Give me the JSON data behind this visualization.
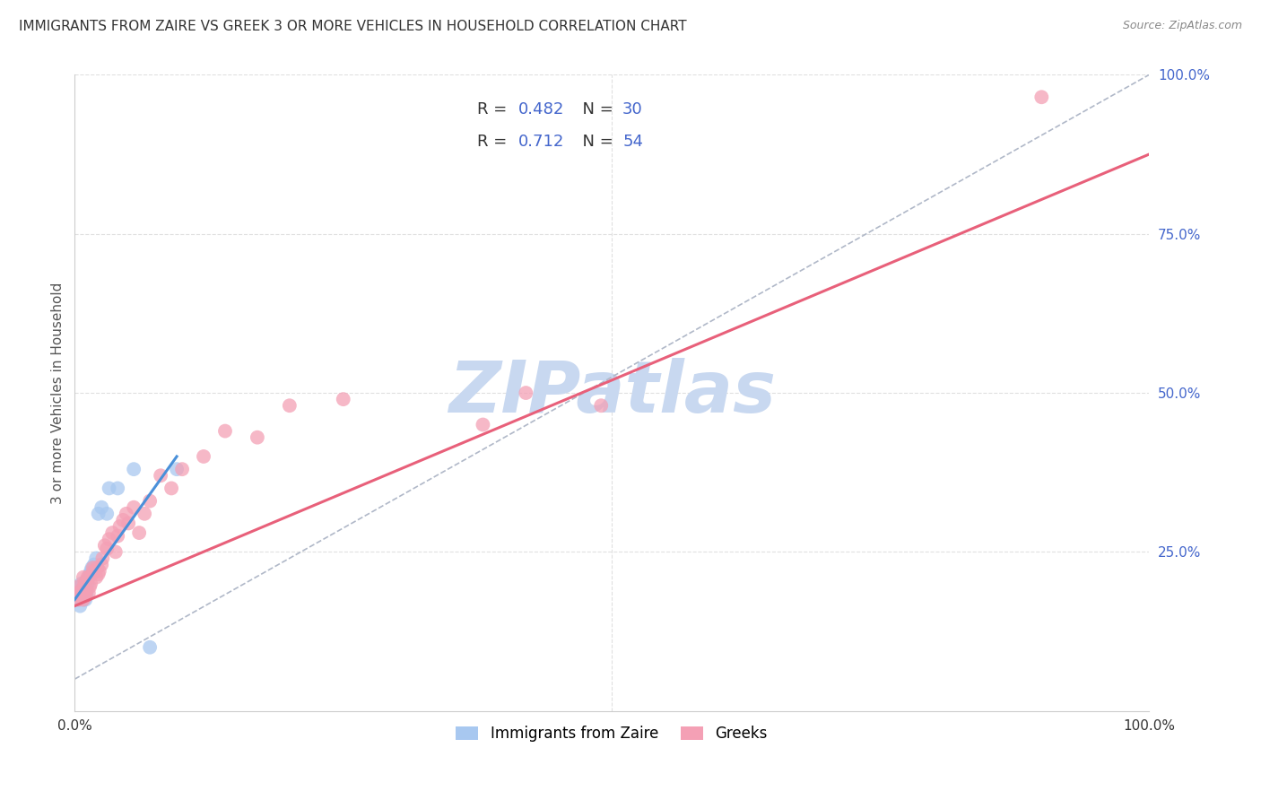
{
  "title": "IMMIGRANTS FROM ZAIRE VS GREEK 3 OR MORE VEHICLES IN HOUSEHOLD CORRELATION CHART",
  "source_text": "Source: ZipAtlas.com",
  "ylabel": "3 or more Vehicles in Household",
  "watermark": "ZIPatlas",
  "xlim": [
    0,
    1.0
  ],
  "ylim": [
    0,
    1.0
  ],
  "legend_r_n": [
    {
      "R": "0.482",
      "N": "30",
      "color": "#a8c8f0"
    },
    {
      "R": "0.712",
      "N": "54",
      "color": "#f4a0b5"
    }
  ],
  "blue_scatter_x": [
    0.003,
    0.004,
    0.005,
    0.005,
    0.006,
    0.007,
    0.007,
    0.008,
    0.008,
    0.009,
    0.009,
    0.01,
    0.01,
    0.011,
    0.011,
    0.012,
    0.013,
    0.014,
    0.015,
    0.016,
    0.018,
    0.02,
    0.022,
    0.025,
    0.03,
    0.032,
    0.04,
    0.055,
    0.07,
    0.095
  ],
  "blue_scatter_y": [
    0.185,
    0.175,
    0.165,
    0.195,
    0.2,
    0.18,
    0.19,
    0.185,
    0.175,
    0.178,
    0.185,
    0.19,
    0.175,
    0.182,
    0.195,
    0.2,
    0.21,
    0.215,
    0.22,
    0.225,
    0.23,
    0.24,
    0.31,
    0.32,
    0.31,
    0.35,
    0.35,
    0.38,
    0.1,
    0.38
  ],
  "pink_scatter_x": [
    0.002,
    0.003,
    0.004,
    0.005,
    0.006,
    0.007,
    0.007,
    0.008,
    0.008,
    0.009,
    0.009,
    0.01,
    0.01,
    0.011,
    0.011,
    0.012,
    0.013,
    0.014,
    0.015,
    0.016,
    0.017,
    0.018,
    0.02,
    0.021,
    0.022,
    0.023,
    0.025,
    0.026,
    0.028,
    0.03,
    0.032,
    0.035,
    0.038,
    0.04,
    0.042,
    0.045,
    0.048,
    0.05,
    0.055,
    0.06,
    0.065,
    0.07,
    0.08,
    0.09,
    0.1,
    0.12,
    0.14,
    0.17,
    0.2,
    0.25,
    0.38,
    0.42,
    0.49,
    0.9
  ],
  "pink_scatter_y": [
    0.185,
    0.195,
    0.175,
    0.18,
    0.185,
    0.192,
    0.185,
    0.175,
    0.21,
    0.2,
    0.195,
    0.18,
    0.185,
    0.19,
    0.205,
    0.21,
    0.185,
    0.195,
    0.2,
    0.215,
    0.225,
    0.22,
    0.21,
    0.225,
    0.215,
    0.22,
    0.23,
    0.24,
    0.26,
    0.255,
    0.27,
    0.28,
    0.25,
    0.275,
    0.29,
    0.3,
    0.31,
    0.295,
    0.32,
    0.28,
    0.31,
    0.33,
    0.37,
    0.35,
    0.38,
    0.4,
    0.44,
    0.43,
    0.48,
    0.49,
    0.45,
    0.5,
    0.48,
    0.965
  ],
  "blue_line_x": [
    0.0,
    0.095
  ],
  "blue_line_y": [
    0.175,
    0.4
  ],
  "pink_line_x": [
    0.0,
    1.0
  ],
  "pink_line_y": [
    0.165,
    0.875
  ],
  "dashed_line_x": [
    0.0,
    1.0
  ],
  "dashed_line_y": [
    0.05,
    1.0
  ],
  "blue_color": "#a8c8f0",
  "pink_color": "#f4a0b5",
  "blue_line_color": "#4a90d9",
  "pink_line_color": "#e8607a",
  "dashed_line_color": "#b0b8c8",
  "grid_color": "#e0e0e0",
  "background_color": "#ffffff",
  "title_color": "#333333",
  "right_axis_color": "#4466cc",
  "watermark_color": "#c8d8f0",
  "bottom_legend": [
    {
      "label": "Immigrants from Zaire",
      "color": "#a8c8f0"
    },
    {
      "label": "Greeks",
      "color": "#f4a0b5"
    }
  ]
}
